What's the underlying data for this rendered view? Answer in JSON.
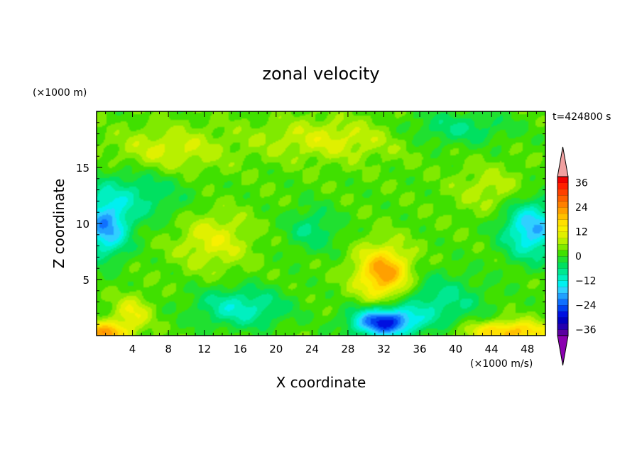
{
  "chart_data": {
    "type": "heatmap",
    "title": "zonal velocity",
    "xlabel": "X coordinate",
    "ylabel": "Z coordinate",
    "x_unit": "(×1000 m/s)",
    "y_unit": "(×1000 m)",
    "time_label": "t=424800 s",
    "xlim": [
      0,
      50
    ],
    "ylim": [
      0,
      20
    ],
    "x_ticks": [
      4,
      8,
      12,
      16,
      20,
      24,
      28,
      32,
      36,
      40,
      44,
      48
    ],
    "y_ticks": [
      5,
      10,
      15
    ],
    "colorbar": {
      "levels": [
        -42,
        -39,
        -36,
        -33,
        -30,
        -27,
        -24,
        -21,
        -18,
        -15,
        -12,
        -9,
        -6,
        -3,
        0,
        3,
        6,
        9,
        12,
        15,
        18,
        21,
        24,
        27,
        30,
        33,
        36,
        39,
        42
      ],
      "tick_values": [
        36,
        24,
        12,
        0,
        -12,
        -24,
        -36
      ],
      "tick_labels": [
        "36",
        "24",
        "12",
        "0",
        "−12",
        "−24",
        "−36"
      ],
      "colors": [
        "#8a00b0",
        "#5a00a0",
        "#2400b0",
        "#0000c0",
        "#0010e0",
        "#0040f0",
        "#1070ff",
        "#20a0ff",
        "#30d0ff",
        "#00f0f0",
        "#00f0c0",
        "#00e890",
        "#00e060",
        "#20e030",
        "#40e000",
        "#80ea00",
        "#b8f000",
        "#e0f000",
        "#f8f000",
        "#ffe000",
        "#ffc000",
        "#ffa000",
        "#ff8000",
        "#ff6000",
        "#ff4000",
        "#ff2000",
        "#f00000",
        "#f0a0a0"
      ],
      "extends": "both"
    },
    "features": [
      {
        "x": 32,
        "z": 5.5,
        "value": 22,
        "sx": 3.0,
        "sz": 2.4
      },
      {
        "x": 32,
        "z": 1.2,
        "value": -30,
        "sx": 3.5,
        "sz": 1.3
      },
      {
        "x": 1,
        "z": 9.5,
        "value": -20,
        "sx": 2.6,
        "sz": 2.6
      },
      {
        "x": 48.5,
        "z": 9.5,
        "value": -20,
        "sx": 3.2,
        "sz": 2.6
      },
      {
        "x": 16,
        "z": 2.5,
        "value": -13,
        "sx": 5,
        "sz": 1.8
      },
      {
        "x": 46,
        "z": 0.3,
        "value": 18,
        "sx": 5,
        "sz": 1.0
      },
      {
        "x": 1,
        "z": 0.2,
        "value": 20,
        "sx": 2.5,
        "sz": 1.0
      },
      {
        "x": 4,
        "z": 2.0,
        "value": 10,
        "sx": 2,
        "sz": 1.5
      },
      {
        "x": 13,
        "z": 8.5,
        "value": 9,
        "sx": 4,
        "sz": 2.6
      },
      {
        "x": 8,
        "z": 16.5,
        "value": 8,
        "sx": 6,
        "sz": 2
      },
      {
        "x": 26,
        "z": 17.5,
        "value": 8,
        "sx": 8,
        "sz": 1.8
      },
      {
        "x": 44,
        "z": 13,
        "value": 6,
        "sx": 4,
        "sz": 2
      },
      {
        "x": 24,
        "z": 9.5,
        "value": -8,
        "sx": 3,
        "sz": 2
      },
      {
        "x": 4,
        "z": 12.5,
        "value": -9,
        "sx": 6,
        "sz": 2.5
      },
      {
        "x": 38,
        "z": 3.0,
        "value": -10,
        "sx": 5,
        "sz": 2.5
      },
      {
        "x": 40,
        "z": 18.5,
        "value": -8,
        "sx": 6,
        "sz": 1.5
      }
    ]
  }
}
